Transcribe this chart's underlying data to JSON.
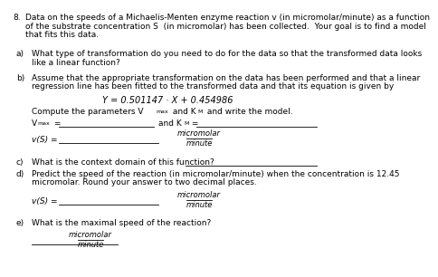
{
  "bg_color": "#ffffff",
  "text_color": "#000000",
  "title_num": "8.",
  "title_line1": "Data on the speeds of a Michaelis-Menten enzyme reaction v (in micromolar/minute) as a function",
  "title_line2": "of the substrate concentration S  (in micromolar) has been collected.  Your goal is to find a model",
  "title_line3": "that fits this data.",
  "a_label": "a)",
  "a_line1": "What type of transformation do you need to do for the data so that the transformed data looks",
  "a_line2": "like a linear function?",
  "b_label": "b)",
  "b_line1": "Assume that the appropriate transformation on the data has been performed and that a linear",
  "b_line2": "regression line has been fitted to the transformed data and that its equation is given by",
  "equation": "Y = 0.501147 · X + 0.454986",
  "compute_line": "Compute the parameters V",
  "compute_max": "max",
  "compute_rest": " and K",
  "compute_m": "M",
  "compute_end": " and write the model.",
  "vmax_v": "V",
  "vmax_max": "max",
  "vmax_eq": " =",
  "and_k": "and K",
  "and_m": "M",
  "and_eq": " =",
  "vs_v": "v(S) =",
  "unit_micro": "micromolar",
  "unit_minute": "minute",
  "c_label": "c)",
  "c_text": "What is the context domain of this function?",
  "d_label": "d)",
  "d_line1": "Predict the speed of the reaction (in micromolar/minute) when the concentration is 12.45",
  "d_line2": "micromolar. Round your answer to two decimal places.",
  "e_label": "e)",
  "e_text": "What is the maximal speed of the reaction?",
  "fs": 6.5,
  "fs_eq": 7.0
}
